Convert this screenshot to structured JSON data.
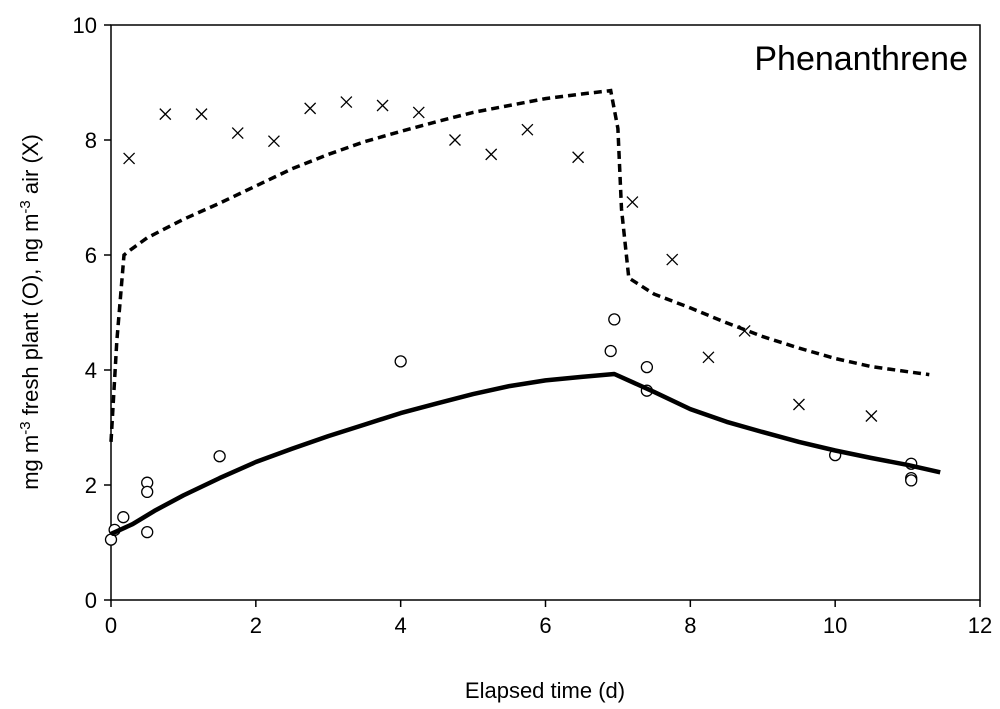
{
  "chart_data": {
    "type": "scatter",
    "title": "Phenanthrene",
    "xlabel": "Elapsed time (d)",
    "ylabel": {
      "parts": [
        {
          "text": "mg m",
          "sup": false
        },
        {
          "text": "-3",
          "sup": true
        },
        {
          "text": " fresh plant (O), ng m",
          "sup": false
        },
        {
          "text": "-3",
          "sup": true
        },
        {
          "text": " air (X)",
          "sup": false
        }
      ]
    },
    "xlim": [
      0,
      12
    ],
    "ylim": [
      0,
      10
    ],
    "xticks": [
      "0",
      "2",
      "4",
      "6",
      "8",
      "10",
      "12"
    ],
    "yticks": [
      "0",
      "2",
      "4",
      "6",
      "8",
      "10"
    ],
    "grid": false,
    "series": [
      {
        "marker": "x",
        "points": [
          [
            0.25,
            7.68
          ],
          [
            0.75,
            8.45
          ],
          [
            1.25,
            8.45
          ],
          [
            1.75,
            8.12
          ],
          [
            2.25,
            7.98
          ],
          [
            2.75,
            8.55
          ],
          [
            3.25,
            8.66
          ],
          [
            3.75,
            8.6
          ],
          [
            4.25,
            8.48
          ],
          [
            4.75,
            8.0
          ],
          [
            5.25,
            7.75
          ],
          [
            5.75,
            8.18
          ],
          [
            6.45,
            7.7
          ],
          [
            7.2,
            6.92
          ],
          [
            7.75,
            5.92
          ],
          [
            8.25,
            4.22
          ],
          [
            8.75,
            4.68
          ],
          [
            9.5,
            3.4
          ],
          [
            10.5,
            3.2
          ]
        ]
      },
      {
        "marker": "o",
        "points": [
          [
            0.0,
            1.05
          ],
          [
            0.05,
            1.22
          ],
          [
            0.17,
            1.44
          ],
          [
            0.5,
            2.04
          ],
          [
            0.5,
            1.88
          ],
          [
            0.5,
            1.18
          ],
          [
            1.5,
            2.5
          ],
          [
            4.0,
            4.15
          ],
          [
            6.9,
            4.33
          ],
          [
            6.95,
            4.88
          ],
          [
            7.4,
            4.05
          ],
          [
            7.4,
            3.64
          ],
          [
            10.0,
            2.52
          ],
          [
            11.05,
            2.37
          ],
          [
            11.05,
            2.12
          ],
          [
            11.05,
            2.08
          ]
        ]
      },
      {
        "line": "dashed",
        "points": [
          [
            0.0,
            2.75
          ],
          [
            0.08,
            4.5
          ],
          [
            0.18,
            6.0
          ],
          [
            0.28,
            6.1
          ],
          [
            0.5,
            6.3
          ],
          [
            1.0,
            6.62
          ],
          [
            1.5,
            6.9
          ],
          [
            2.0,
            7.2
          ],
          [
            2.5,
            7.5
          ],
          [
            3.0,
            7.75
          ],
          [
            3.5,
            7.97
          ],
          [
            4.0,
            8.15
          ],
          [
            4.5,
            8.32
          ],
          [
            5.0,
            8.48
          ],
          [
            5.5,
            8.6
          ],
          [
            6.0,
            8.72
          ],
          [
            6.5,
            8.8
          ],
          [
            6.9,
            8.86
          ],
          [
            7.0,
            8.2
          ],
          [
            7.05,
            6.8
          ],
          [
            7.15,
            5.6
          ],
          [
            7.5,
            5.32
          ],
          [
            8.0,
            5.08
          ],
          [
            8.5,
            4.82
          ],
          [
            9.0,
            4.58
          ],
          [
            9.5,
            4.38
          ],
          [
            10.0,
            4.2
          ],
          [
            10.5,
            4.06
          ],
          [
            11.0,
            3.97
          ],
          [
            11.3,
            3.92
          ]
        ]
      },
      {
        "line": "solid",
        "points": [
          [
            0.0,
            1.15
          ],
          [
            0.3,
            1.32
          ],
          [
            0.6,
            1.55
          ],
          [
            1.0,
            1.82
          ],
          [
            1.5,
            2.12
          ],
          [
            2.0,
            2.4
          ],
          [
            2.5,
            2.63
          ],
          [
            3.0,
            2.85
          ],
          [
            3.5,
            3.05
          ],
          [
            4.0,
            3.25
          ],
          [
            4.5,
            3.42
          ],
          [
            5.0,
            3.58
          ],
          [
            5.5,
            3.72
          ],
          [
            6.0,
            3.82
          ],
          [
            6.5,
            3.88
          ],
          [
            6.95,
            3.93
          ],
          [
            7.5,
            3.62
          ],
          [
            8.0,
            3.32
          ],
          [
            8.5,
            3.1
          ],
          [
            9.0,
            2.92
          ],
          [
            9.5,
            2.75
          ],
          [
            10.0,
            2.6
          ],
          [
            10.5,
            2.47
          ],
          [
            11.0,
            2.35
          ],
          [
            11.45,
            2.22
          ]
        ]
      }
    ]
  }
}
